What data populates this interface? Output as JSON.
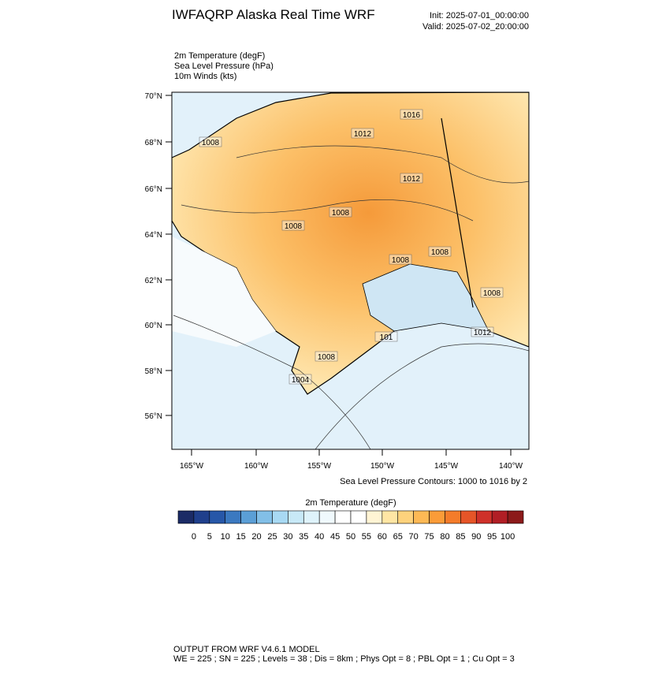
{
  "header": {
    "title": "IWFAQRP Alaska Real Time WRF",
    "init": "Init: 2025-07-01_00:00:00",
    "valid": "Valid: 2025-07-02_20:00:00"
  },
  "fields": [
    "2m Temperature   (degF)",
    "Sea Level Pressure   (hPa)",
    "10m Winds   (kts)"
  ],
  "map": {
    "lat_labels": [
      "70°N",
      "68°N",
      "66°N",
      "64°N",
      "62°N",
      "60°N",
      "58°N",
      "56°N"
    ],
    "lon_labels": [
      "165°W",
      "160°W",
      "155°W",
      "150°W",
      "145°W",
      "140°W"
    ],
    "contour_labels": [
      "1016",
      "1012",
      "1008",
      "1012",
      "1008",
      "1008",
      "1008",
      "1008",
      "1008",
      "1012",
      "101",
      "1008",
      "1004"
    ],
    "contour_note": "Sea Level Pressure Contours: 1000 to 1016 by 2"
  },
  "colorbar": {
    "title": "2m Temperature  (degF)",
    "colors": [
      "#1b2b66",
      "#1f3f8c",
      "#2757a8",
      "#3b79c0",
      "#5b9fd6",
      "#82bfe7",
      "#a8d9f3",
      "#c8e9f7",
      "#dff3fb",
      "#f0f9fd",
      "#ffffff",
      "#ffffff",
      "#fff4d4",
      "#ffe6a4",
      "#fed27c",
      "#fdb955",
      "#fb9c38",
      "#f47c2a",
      "#e65528",
      "#cf312a",
      "#b11e25",
      "#8c1a1a"
    ],
    "labels": [
      "0",
      "5",
      "10",
      "15",
      "20",
      "25",
      "30",
      "35",
      "40",
      "45",
      "50",
      "55",
      "60",
      "65",
      "70",
      "75",
      "80",
      "85",
      "90",
      "95",
      "100"
    ]
  },
  "footer": [
    "OUTPUT FROM WRF V4.6.1 MODEL",
    "WE = 225 ; SN = 225 ; Levels = 38 ; Dis = 8km ; Phys Opt = 8 ; PBL Opt = 1 ; Cu Opt = 3"
  ]
}
